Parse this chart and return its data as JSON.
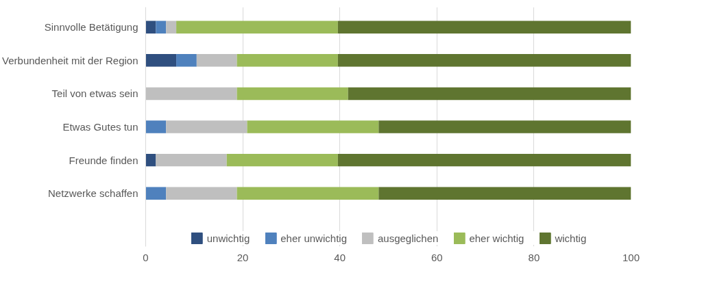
{
  "chart_data": {
    "type": "bar",
    "orientation": "horizontal",
    "stacked": true,
    "categories": [
      "Sinnvolle Betätigung",
      "Verbundenheit mit der Region",
      "Teil von etwas sein",
      "Etwas Gutes tun",
      "Freunde finden",
      "Netzwerke schaffen"
    ],
    "series": [
      {
        "name": "unwichtig",
        "color": "#2f4f7f",
        "values": [
          2.1,
          6.3,
          0,
          0,
          2.1,
          0
        ]
      },
      {
        "name": "eher unwichtig",
        "color": "#4f81bd",
        "values": [
          2.1,
          4.2,
          0,
          4.2,
          0,
          4.2
        ]
      },
      {
        "name": "ausgeglichen",
        "color": "#bfbfbf",
        "values": [
          2.1,
          8.3,
          18.8,
          16.7,
          14.6,
          14.6
        ]
      },
      {
        "name": "eher wichtig",
        "color": "#9bbb59",
        "values": [
          33.3,
          20.8,
          22.9,
          27.1,
          22.9,
          29.2
        ]
      },
      {
        "name": "wichtig",
        "color": "#5f7530",
        "values": [
          60.4,
          60.4,
          58.3,
          52.1,
          60.4,
          52.1
        ]
      }
    ],
    "xlim": [
      0,
      100
    ],
    "xticks": [
      0,
      20,
      40,
      60,
      80,
      100
    ],
    "grid": "x",
    "legend": "bottom"
  }
}
